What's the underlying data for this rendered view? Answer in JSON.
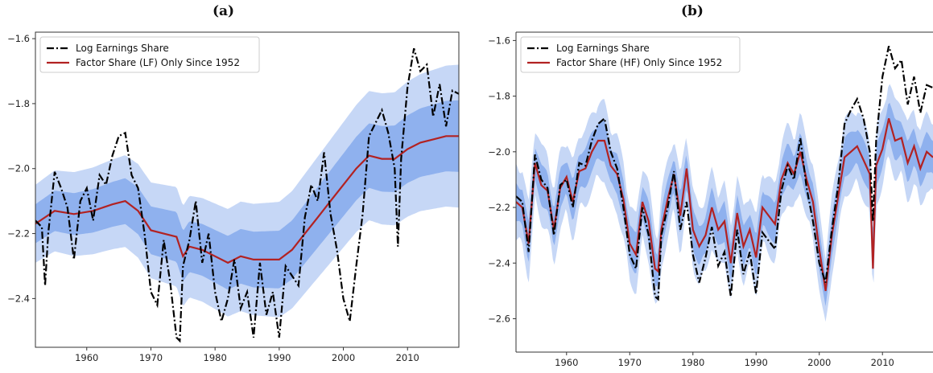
{
  "panels": [
    {
      "label": "(a)"
    },
    {
      "label": "(b)"
    }
  ],
  "colors": {
    "earnings": "#000000",
    "factor": "#b22222",
    "band_inner": "#8fb1ee",
    "band_outer": "#c6d7f6"
  },
  "chart_data": [
    {
      "type": "line",
      "title": "(a)",
      "xlim": [
        1952,
        2018
      ],
      "ylim": [
        -2.55,
        -1.58
      ],
      "xticks": [
        1960,
        1970,
        1980,
        1990,
        2000,
        2010
      ],
      "yticks": [
        -2.4,
        -2.2,
        -2.0,
        -1.8,
        -1.6
      ],
      "ytick_labels": [
        "−2.4",
        "−2.2",
        "−2.0",
        "−1.8",
        "−1.6"
      ],
      "legend_position": "top-left",
      "series": [
        {
          "name": "Log Earnings Share",
          "style": "dash-dot",
          "x": [
            1952,
            1953,
            1953.5,
            1954,
            1955,
            1956,
            1957,
            1958,
            1959,
            1960,
            1961,
            1962,
            1963,
            1964,
            1965,
            1966,
            1967,
            1968,
            1969,
            1970,
            1971,
            1972,
            1973,
            1974,
            1974.5,
            1975,
            1976,
            1977,
            1978,
            1979,
            1980,
            1981,
            1982,
            1983,
            1984,
            1985,
            1986,
            1987,
            1988,
            1989,
            1990,
            1991,
            1992,
            1993,
            1994,
            1995,
            1996,
            1997,
            1998,
            1999,
            2000,
            2001,
            2002,
            2003,
            2004,
            2005,
            2006,
            2007,
            2008,
            2008.5,
            2009,
            2010,
            2011,
            2012,
            2013,
            2014,
            2015,
            2016,
            2017,
            2018
          ],
          "y": [
            -2.16,
            -2.18,
            -2.36,
            -2.2,
            -2.01,
            -2.06,
            -2.12,
            -2.28,
            -2.1,
            -2.06,
            -2.16,
            -2.02,
            -2.05,
            -1.96,
            -1.9,
            -1.89,
            -2.02,
            -2.06,
            -2.2,
            -2.38,
            -2.42,
            -2.22,
            -2.35,
            -2.52,
            -2.53,
            -2.3,
            -2.22,
            -2.1,
            -2.29,
            -2.2,
            -2.38,
            -2.47,
            -2.4,
            -2.28,
            -2.43,
            -2.38,
            -2.52,
            -2.29,
            -2.45,
            -2.38,
            -2.52,
            -2.3,
            -2.33,
            -2.36,
            -2.15,
            -2.05,
            -2.1,
            -1.95,
            -2.14,
            -2.25,
            -2.4,
            -2.47,
            -2.3,
            -2.14,
            -1.9,
            -1.86,
            -1.82,
            -1.89,
            -2.0,
            -2.24,
            -1.97,
            -1.75,
            -1.63,
            -1.7,
            -1.68,
            -1.84,
            -1.74,
            -1.87,
            -1.76,
            -1.77
          ]
        },
        {
          "name": "Factor Share (LF) Only Since 1952",
          "style": "solid",
          "x": [
            1952,
            1955,
            1958,
            1961,
            1964,
            1966,
            1968,
            1970,
            1972,
            1974,
            1975,
            1976,
            1978,
            1980,
            1982,
            1984,
            1986,
            1988,
            1990,
            1992,
            1994,
            1996,
            1998,
            2000,
            2002,
            2004,
            2006,
            2008,
            2010,
            2012,
            2014,
            2016,
            2018
          ],
          "y": [
            -2.17,
            -2.13,
            -2.14,
            -2.13,
            -2.11,
            -2.1,
            -2.13,
            -2.19,
            -2.2,
            -2.21,
            -2.27,
            -2.24,
            -2.25,
            -2.27,
            -2.29,
            -2.27,
            -2.28,
            -2.28,
            -2.28,
            -2.25,
            -2.2,
            -2.15,
            -2.1,
            -2.05,
            -2.0,
            -1.96,
            -1.97,
            -1.97,
            -1.94,
            -1.92,
            -1.91,
            -1.9,
            -1.9
          ]
        }
      ]
    },
    {
      "type": "line",
      "title": "(b)",
      "xlim": [
        1952,
        2018
      ],
      "ylim": [
        -2.72,
        -1.57
      ],
      "xticks": [
        1960,
        1970,
        1980,
        1990,
        2000,
        2010
      ],
      "yticks": [
        -2.6,
        -2.4,
        -2.2,
        -2.0,
        -1.8,
        -1.6
      ],
      "ytick_labels": [
        "−2.6",
        "−2.4",
        "−2.2",
        "−2.0",
        "−1.8",
        "−1.6"
      ],
      "legend_position": "top-left",
      "series": [
        {
          "name": "Log Earnings Share",
          "style": "dash-dot",
          "x": [
            1952,
            1953,
            1954,
            1955,
            1956,
            1957,
            1958,
            1959,
            1960,
            1961,
            1962,
            1963,
            1964,
            1965,
            1966,
            1967,
            1968,
            1969,
            1970,
            1971,
            1972,
            1973,
            1974,
            1974.5,
            1975,
            1976,
            1977,
            1978,
            1979,
            1980,
            1981,
            1982,
            1983,
            1984,
            1985,
            1986,
            1987,
            1988,
            1989,
            1990,
            1991,
            1992,
            1993,
            1994,
            1995,
            1996,
            1997,
            1998,
            1999,
            2000,
            2001,
            2002,
            2003,
            2004,
            2005,
            2006,
            2007,
            2008,
            2008.5,
            2009,
            2010,
            2011,
            2012,
            2013,
            2014,
            2015,
            2016,
            2017,
            2018
          ],
          "y": [
            -2.16,
            -2.18,
            -2.36,
            -2.01,
            -2.1,
            -2.13,
            -2.3,
            -2.12,
            -2.1,
            -2.2,
            -2.04,
            -2.05,
            -1.96,
            -1.9,
            -1.88,
            -2.0,
            -2.06,
            -2.2,
            -2.37,
            -2.42,
            -2.2,
            -2.3,
            -2.52,
            -2.53,
            -2.3,
            -2.2,
            -2.07,
            -2.28,
            -2.18,
            -2.37,
            -2.47,
            -2.38,
            -2.27,
            -2.41,
            -2.36,
            -2.52,
            -2.28,
            -2.44,
            -2.36,
            -2.51,
            -2.29,
            -2.32,
            -2.35,
            -2.14,
            -2.05,
            -2.1,
            -1.95,
            -2.13,
            -2.25,
            -2.4,
            -2.47,
            -2.28,
            -2.12,
            -1.9,
            -1.85,
            -1.81,
            -1.88,
            -2.0,
            -2.25,
            -1.96,
            -1.73,
            -1.62,
            -1.7,
            -1.67,
            -1.83,
            -1.73,
            -1.86,
            -1.76,
            -1.77
          ]
        },
        {
          "name": "Factor Share (HF) Only Since 1952",
          "style": "solid",
          "x": [
            1952,
            1953,
            1954,
            1955,
            1956,
            1957,
            1958,
            1959,
            1960,
            1961,
            1962,
            1963,
            1964,
            1965,
            1966,
            1967,
            1968,
            1969,
            1970,
            1971,
            1972,
            1973,
            1974,
            1974.5,
            1975,
            1976,
            1977,
            1978,
            1979,
            1980,
            1981,
            1982,
            1983,
            1984,
            1985,
            1986,
            1987,
            1988,
            1989,
            1990,
            1991,
            1992,
            1993,
            1994,
            1995,
            1996,
            1997,
            1998,
            1999,
            2000,
            2001,
            2002,
            2003,
            2004,
            2005,
            2006,
            2007,
            2008,
            2008.5,
            2009,
            2010,
            2011,
            2012,
            2013,
            2014,
            2015,
            2016,
            2017,
            2018
          ],
          "y": [
            -2.18,
            -2.2,
            -2.33,
            -2.04,
            -2.12,
            -2.14,
            -2.28,
            -2.13,
            -2.09,
            -2.18,
            -2.07,
            -2.06,
            -2.0,
            -1.96,
            -1.96,
            -2.05,
            -2.08,
            -2.17,
            -2.33,
            -2.37,
            -2.18,
            -2.25,
            -2.42,
            -2.43,
            -2.28,
            -2.17,
            -2.08,
            -2.23,
            -2.06,
            -2.28,
            -2.34,
            -2.3,
            -2.2,
            -2.28,
            -2.25,
            -2.4,
            -2.22,
            -2.34,
            -2.28,
            -2.38,
            -2.2,
            -2.23,
            -2.26,
            -2.1,
            -2.04,
            -2.08,
            -2.0,
            -2.1,
            -2.18,
            -2.35,
            -2.5,
            -2.3,
            -2.16,
            -2.02,
            -2.0,
            -1.98,
            -2.03,
            -2.08,
            -2.42,
            -2.05,
            -1.99,
            -1.88,
            -1.96,
            -1.95,
            -2.04,
            -1.98,
            -2.06,
            -2.0,
            -2.02
          ]
        }
      ]
    }
  ]
}
